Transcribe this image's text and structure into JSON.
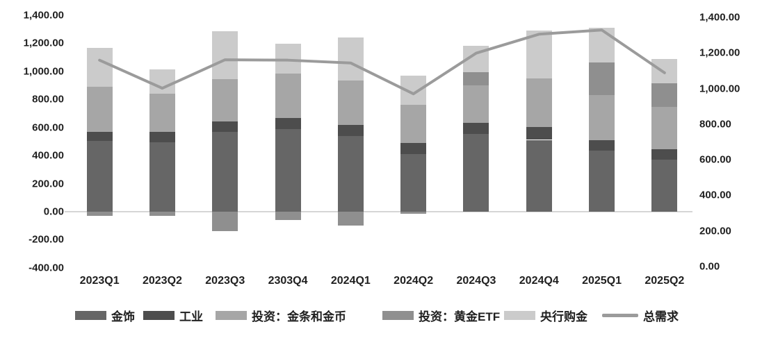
{
  "chart_data": {
    "type": "bar",
    "subtype": "stacked-bar-with-line",
    "title": "",
    "xlabel": "",
    "ylabel": "",
    "categories": [
      "2023Q1",
      "2023Q2",
      "2023Q3",
      "2303Q4",
      "2024Q1",
      "2024Q2",
      "2024Q3",
      "2024Q4",
      "2025Q1",
      "2025Q2"
    ],
    "series": [
      {
        "key": "jewelry",
        "label": "金饰",
        "color": "#666666",
        "values": [
          507,
          496,
          570,
          587,
          539,
          413,
          556,
          512,
          435,
          369
        ]
      },
      {
        "key": "industry",
        "label": "工业",
        "color": "#4d4d4d",
        "values": [
          63,
          75,
          75,
          79,
          78,
          75,
          77,
          90,
          74,
          74
        ]
      },
      {
        "key": "bar-coin",
        "label": "投资：金条和金币",
        "color": "#a6a6a6",
        "values": [
          319,
          272,
          301,
          319,
          319,
          274,
          268,
          350,
          323,
          306
        ]
      },
      {
        "key": "gold-etf",
        "label": "投资：黄金ETF",
        "color": "#8f8f8f",
        "values": [
          -30,
          -30,
          -140,
          -60,
          -100,
          -15,
          91,
          0,
          231,
          165
        ]
      },
      {
        "key": "central-bank",
        "label": "央行购金",
        "color": "#cbcbcb",
        "values": [
          277,
          169,
          339,
          214,
          304,
          207,
          192,
          338,
          248,
          174
        ]
      }
    ],
    "line_series": {
      "key": "total-demand",
      "label": "总需求",
      "color": "#9b9b9b",
      "values": [
        1080,
        880,
        1083,
        1080,
        1060,
        840,
        1130,
        1265,
        1295,
        990
      ]
    },
    "left_axis": {
      "labels": [
        "1,400.00",
        "1,200.00",
        "1,000.00",
        "800.00",
        "600.00",
        "400.00",
        "200.00",
        "0.00",
        "-200.00",
        "-400.00"
      ],
      "values": [
        1400,
        1200,
        1000,
        800,
        600,
        400,
        200,
        0,
        -200,
        -400
      ],
      "min": -400,
      "max": 1400
    },
    "right_axis": {
      "labels": [
        "1,400.00",
        "1,200.00",
        "1,000.00",
        "800.00",
        "600.00",
        "400.00",
        "200.00",
        "0.00"
      ],
      "values": [
        1400,
        1200,
        1000,
        800,
        600,
        400,
        200,
        0
      ],
      "min": 0,
      "max": 1400
    },
    "legend_position": "bottom",
    "grid": "none"
  },
  "layout_note_colors": {
    "axis_line": "#d6d6d6",
    "text": "#1f1f1f",
    "background": "#ffffff"
  }
}
